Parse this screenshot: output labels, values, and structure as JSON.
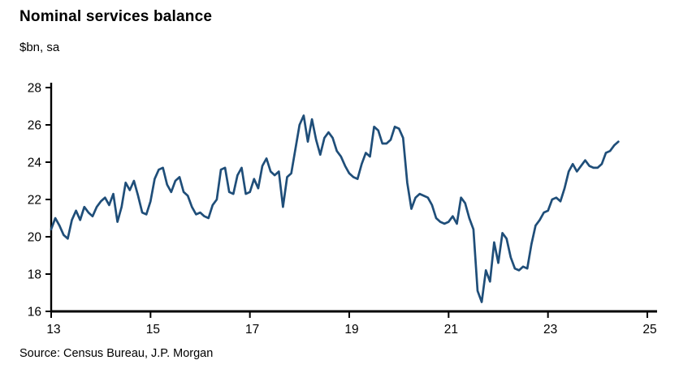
{
  "title": "Nominal services balance",
  "subtitle": "$bn, sa",
  "source": "Source: Census Bureau, J.P. Morgan",
  "colors": {
    "line": "#1f4e79",
    "axis": "#000000",
    "text": "#000000"
  },
  "chart_data": {
    "type": "line",
    "title": "Nominal services balance",
    "ylabel": "$bn, sa",
    "series_name": "Nominal services balance ($bn, sa)",
    "frequency": "monthly",
    "x_start": 13.0,
    "x_step": 0.0833333,
    "xlim": [
      13,
      25
    ],
    "ylim": [
      16,
      28
    ],
    "xticks": [
      13,
      15,
      17,
      19,
      21,
      23,
      25
    ],
    "yticks": [
      16,
      18,
      20,
      22,
      24,
      26,
      28
    ],
    "grid": false,
    "legend": "none",
    "values": [
      20.4,
      21.0,
      20.6,
      20.1,
      19.9,
      20.9,
      21.4,
      20.9,
      21.6,
      21.3,
      21.1,
      21.6,
      21.9,
      22.1,
      21.7,
      22.3,
      20.8,
      21.6,
      22.9,
      22.5,
      23.0,
      22.2,
      21.3,
      21.2,
      21.9,
      23.1,
      23.6,
      23.7,
      22.8,
      22.4,
      23.0,
      23.2,
      22.4,
      22.2,
      21.6,
      21.2,
      21.3,
      21.1,
      21.0,
      21.7,
      22.0,
      23.6,
      23.7,
      22.4,
      22.3,
      23.3,
      23.7,
      22.3,
      22.4,
      23.1,
      22.6,
      23.8,
      24.2,
      23.5,
      23.3,
      23.5,
      21.6,
      23.2,
      23.4,
      24.7,
      26.0,
      26.5,
      25.1,
      26.3,
      25.2,
      24.4,
      25.3,
      25.6,
      25.3,
      24.6,
      24.3,
      23.8,
      23.4,
      23.2,
      23.1,
      23.9,
      24.5,
      24.3,
      25.9,
      25.7,
      25.0,
      25.0,
      25.2,
      25.9,
      25.8,
      25.3,
      22.9,
      21.5,
      22.1,
      22.3,
      22.2,
      22.1,
      21.7,
      21.0,
      20.8,
      20.7,
      20.8,
      21.1,
      20.7,
      22.1,
      21.8,
      21.0,
      20.4,
      17.1,
      16.5,
      18.2,
      17.6,
      19.7,
      18.6,
      20.2,
      19.9,
      18.9,
      18.3,
      18.2,
      18.4,
      18.3,
      19.6,
      20.6,
      20.9,
      21.3,
      21.4,
      22.0,
      22.1,
      21.9,
      22.6,
      23.5,
      23.9,
      23.5,
      23.8,
      24.1,
      23.8,
      23.7,
      23.7,
      23.9,
      24.5,
      24.6,
      24.9,
      25.1
    ]
  }
}
